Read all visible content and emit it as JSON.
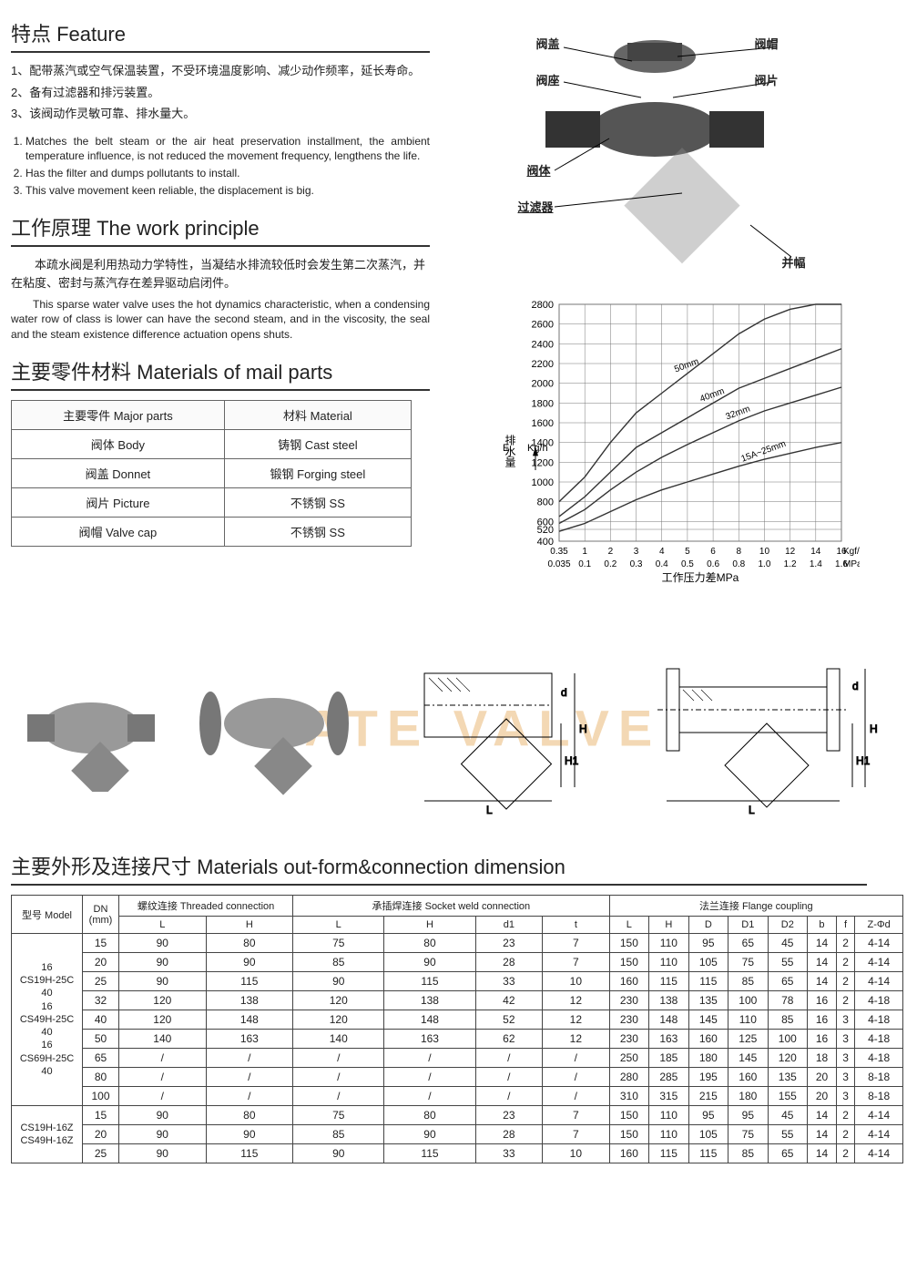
{
  "feature": {
    "title": "特点 Feature",
    "cn_items": [
      "1、配带蒸汽或空气保温装置，不受环境温度影响、减少动作频率，延长寿命。",
      "2、备有过滤器和排污装置。",
      "3、该阀动作灵敏可靠、排水量大。"
    ],
    "en_items": [
      "Matches the belt steam or the air heat preservation installment, the ambient temperature influence, is not reduced the movement frequency, lengthens the life.",
      "Has the filter and dumps pollutants to install.",
      "This valve movement keen reliable, the displacement is big."
    ]
  },
  "principle": {
    "title": "工作原理  The work principle",
    "cn": "本疏水阀是利用热动力学特性，当凝结水排流较低时会发生第二次蒸汽，并在粘度、密封与蒸汽存在差异驱动启闭件。",
    "en": "This sparse water valve uses the hot dynamics characteristic, when a condensing water row of class is lower can have the second steam, and in the viscosity, the seal and the steam existence difference actuation opens shuts."
  },
  "materials": {
    "title": "主要零件材料  Materials of mail parts",
    "headers": {
      "part": "主要零件\nMajor parts",
      "material": "材料\nMaterial"
    },
    "rows": [
      {
        "part": "阀体  Body",
        "material": "铸钢  Cast steel"
      },
      {
        "part": "阀盖  Donnet",
        "material": "锻钢  Forging steel"
      },
      {
        "part": "阀片  Picture",
        "material": "不锈钢  SS"
      },
      {
        "part": "阀帽  Valve cap",
        "material": "不锈钢  SS"
      }
    ]
  },
  "diagram_labels": {
    "cap": "阀盖",
    "hat": "阀帽",
    "seat": "阀座",
    "sheet": "阀片",
    "body": "阀体",
    "filter": "过滤器",
    "fufu": "并幅"
  },
  "chart": {
    "y_label": "排水量  Kg/h",
    "y_ticks": [
      "520",
      "400",
      "600",
      "800",
      "1000",
      "1200",
      "1400",
      "1600",
      "1800",
      "2000",
      "2200",
      "2400",
      "2600",
      "2800"
    ],
    "x_ticks_top": [
      "0.35",
      "1",
      "2",
      "3",
      "4",
      "5",
      "6",
      "8",
      "10",
      "12",
      "14",
      "16"
    ],
    "x_top_unit": "Kgf/cm2",
    "x_ticks_bot": [
      "0.035",
      "0.1",
      "0.2",
      "0.3",
      "0.4",
      "0.5",
      "0.6",
      "0.8",
      "1.0",
      "1.2",
      "1.4",
      "1.6"
    ],
    "x_bot_unit": "MPa",
    "x_label": "工作压力差MPa",
    "line_labels": [
      "50mm",
      "40mm",
      "32mm",
      "15A~25mm"
    ],
    "colors": {
      "grid": "#777",
      "lines": "#333",
      "bg": "#ffffff"
    }
  },
  "watermark": "GATE VALVE",
  "dim": {
    "title": "主要外形及连接尺寸  Materials out-form&connection dimension",
    "group_headers": {
      "model": "型号\nModel",
      "dn": "DN\n(mm)",
      "threaded": "螺纹连接\nThreaded connection",
      "socket": "承插焊连接\nSocket weld connection",
      "flange": "法兰连接  Flange coupling"
    },
    "sub_headers": {
      "threaded": [
        "L",
        "H"
      ],
      "socket": [
        "L",
        "H",
        "d1",
        "t"
      ],
      "flange": [
        "L",
        "H",
        "D",
        "D1",
        "D2",
        "b",
        "f",
        "Z-Φd"
      ]
    },
    "model_groups": [
      {
        "model": "16\nCS19H-25C\n40\n16\nCS49H-25C\n40\n16\nCS69H-25C\n40",
        "rows": [
          {
            "dn": "15",
            "t": [
              "90",
              "80"
            ],
            "s": [
              "75",
              "80",
              "23",
              "7"
            ],
            "f": [
              "150",
              "110",
              "95",
              "65",
              "45",
              "14",
              "2",
              "4-14"
            ]
          },
          {
            "dn": "20",
            "t": [
              "90",
              "90"
            ],
            "s": [
              "85",
              "90",
              "28",
              "7"
            ],
            "f": [
              "150",
              "110",
              "105",
              "75",
              "55",
              "14",
              "2",
              "4-14"
            ]
          },
          {
            "dn": "25",
            "t": [
              "90",
              "115"
            ],
            "s": [
              "90",
              "115",
              "33",
              "10"
            ],
            "f": [
              "160",
              "115",
              "115",
              "85",
              "65",
              "14",
              "2",
              "4-14"
            ]
          },
          {
            "dn": "32",
            "t": [
              "120",
              "138"
            ],
            "s": [
              "120",
              "138",
              "42",
              "12"
            ],
            "f": [
              "230",
              "138",
              "135",
              "100",
              "78",
              "16",
              "2",
              "4-18"
            ]
          },
          {
            "dn": "40",
            "t": [
              "120",
              "148"
            ],
            "s": [
              "120",
              "148",
              "52",
              "12"
            ],
            "f": [
              "230",
              "148",
              "145",
              "110",
              "85",
              "16",
              "3",
              "4-18"
            ]
          },
          {
            "dn": "50",
            "t": [
              "140",
              "163"
            ],
            "s": [
              "140",
              "163",
              "62",
              "12"
            ],
            "f": [
              "230",
              "163",
              "160",
              "125",
              "100",
              "16",
              "3",
              "4-18"
            ]
          },
          {
            "dn": "65",
            "t": [
              "/",
              "/"
            ],
            "s": [
              "/",
              "/",
              "/",
              "/"
            ],
            "f": [
              "250",
              "185",
              "180",
              "145",
              "120",
              "18",
              "3",
              "4-18"
            ]
          },
          {
            "dn": "80",
            "t": [
              "/",
              "/"
            ],
            "s": [
              "/",
              "/",
              "/",
              "/"
            ],
            "f": [
              "280",
              "285",
              "195",
              "160",
              "135",
              "20",
              "3",
              "8-18"
            ]
          },
          {
            "dn": "100",
            "t": [
              "/",
              "/"
            ],
            "s": [
              "/",
              "/",
              "/",
              "/"
            ],
            "f": [
              "310",
              "315",
              "215",
              "180",
              "155",
              "20",
              "3",
              "8-18"
            ]
          }
        ]
      },
      {
        "model": "CS19H-16Z\nCS49H-16Z",
        "rows": [
          {
            "dn": "15",
            "t": [
              "90",
              "80"
            ],
            "s": [
              "75",
              "80",
              "23",
              "7"
            ],
            "f": [
              "150",
              "110",
              "95",
              "95",
              "45",
              "14",
              "2",
              "4-14"
            ]
          },
          {
            "dn": "20",
            "t": [
              "90",
              "90"
            ],
            "s": [
              "85",
              "90",
              "28",
              "7"
            ],
            "f": [
              "150",
              "110",
              "105",
              "75",
              "55",
              "14",
              "2",
              "4-14"
            ]
          },
          {
            "dn": "25",
            "t": [
              "90",
              "115"
            ],
            "s": [
              "90",
              "115",
              "33",
              "10"
            ],
            "f": [
              "160",
              "115",
              "115",
              "85",
              "65",
              "14",
              "2",
              "4-14"
            ]
          }
        ]
      }
    ]
  }
}
